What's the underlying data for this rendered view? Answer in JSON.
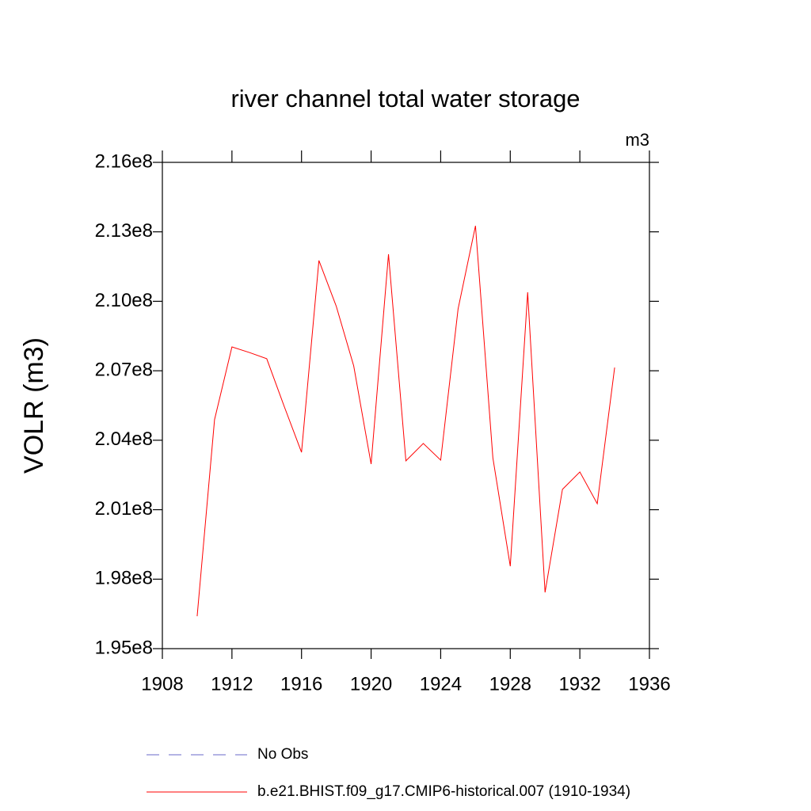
{
  "chart_data": {
    "type": "line",
    "title": "river channel total water storage",
    "units_label": "m3",
    "y_label": "VOLR  (m3)",
    "x": [
      1910,
      1911,
      1912,
      1913,
      1914,
      1915,
      1916,
      1917,
      1918,
      1919,
      1920,
      1921,
      1922,
      1923,
      1924,
      1925,
      1926,
      1927,
      1928,
      1929,
      1930,
      1931,
      1932,
      1933,
      1934
    ],
    "series": [
      {
        "name": "No Obs",
        "color": "#6a6ac8",
        "dashed": true,
        "values": [
          null,
          null,
          null,
          null,
          null,
          null,
          null,
          null,
          null,
          null,
          null,
          null,
          null,
          null,
          null,
          null,
          null,
          null,
          null,
          null,
          null,
          null,
          null,
          null,
          null
        ]
      },
      {
        "name": "b.e21.BHIST.f09_g17.CMIP6-historical.007 (1910-1934)",
        "color": "#ff0000",
        "dashed": false,
        "values": [
          196400000,
          204890000,
          208030000,
          207790000,
          207520000,
          205470000,
          203480000,
          211760000,
          209780000,
          207210000,
          202970000,
          212030000,
          203110000,
          203860000,
          203140000,
          209670000,
          213260000,
          203240000,
          198560000,
          210390000,
          197430000,
          201880000,
          202630000,
          201260000,
          207140000
        ]
      }
    ],
    "xlim": [
      1908,
      1936
    ],
    "xticks": [
      1908,
      1912,
      1916,
      1920,
      1924,
      1928,
      1932,
      1936
    ],
    "ylim": [
      195000000,
      216000000
    ],
    "yticks": [
      {
        "value": 195000000,
        "label": "1.95e8"
      },
      {
        "value": 198000000,
        "label": "1.98e8"
      },
      {
        "value": 201000000,
        "label": "2.01e8"
      },
      {
        "value": 204000000,
        "label": "2.04e8"
      },
      {
        "value": 207000000,
        "label": "2.07e8"
      },
      {
        "value": 210000000,
        "label": "2.10e8"
      },
      {
        "value": 213000000,
        "label": "2.13e8"
      },
      {
        "value": 216000000,
        "label": "2.16e8"
      }
    ],
    "grid": false
  }
}
